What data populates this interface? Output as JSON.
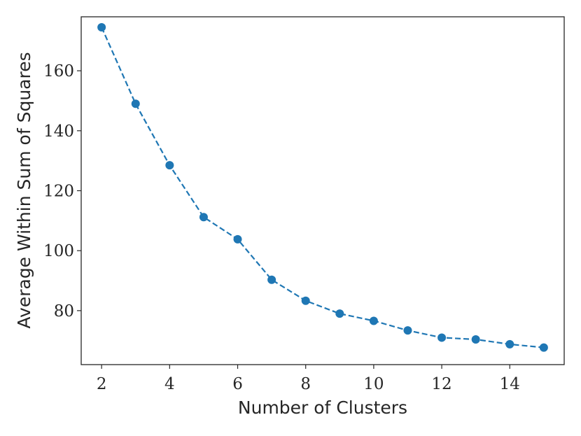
{
  "chart_data": {
    "type": "line",
    "xlabel": "Number of Clusters",
    "ylabel": "Average Within Sum of Squares",
    "xlim": [
      1.4,
      15.6
    ],
    "ylim": [
      62,
      178
    ],
    "x_ticks": [
      2,
      4,
      6,
      8,
      10,
      12,
      14
    ],
    "x_tick_labels": [
      "2",
      "4",
      "6",
      "8",
      "10",
      "12",
      "14"
    ],
    "y_ticks": [
      80,
      100,
      120,
      140,
      160
    ],
    "y_tick_labels": [
      "80",
      "100",
      "120",
      "140",
      "160"
    ],
    "grid": false,
    "line_style": "dashed",
    "marker": "circle",
    "series": [
      {
        "color": "#1f77b4",
        "x": [
          2,
          3,
          4,
          5,
          6,
          7,
          8,
          9,
          10,
          11,
          12,
          13,
          14,
          15
        ],
        "y": [
          174.5,
          149.0,
          128.5,
          111.2,
          103.8,
          90.3,
          83.3,
          79.0,
          76.6,
          73.4,
          71.0,
          70.4,
          68.8,
          67.7
        ]
      }
    ]
  }
}
